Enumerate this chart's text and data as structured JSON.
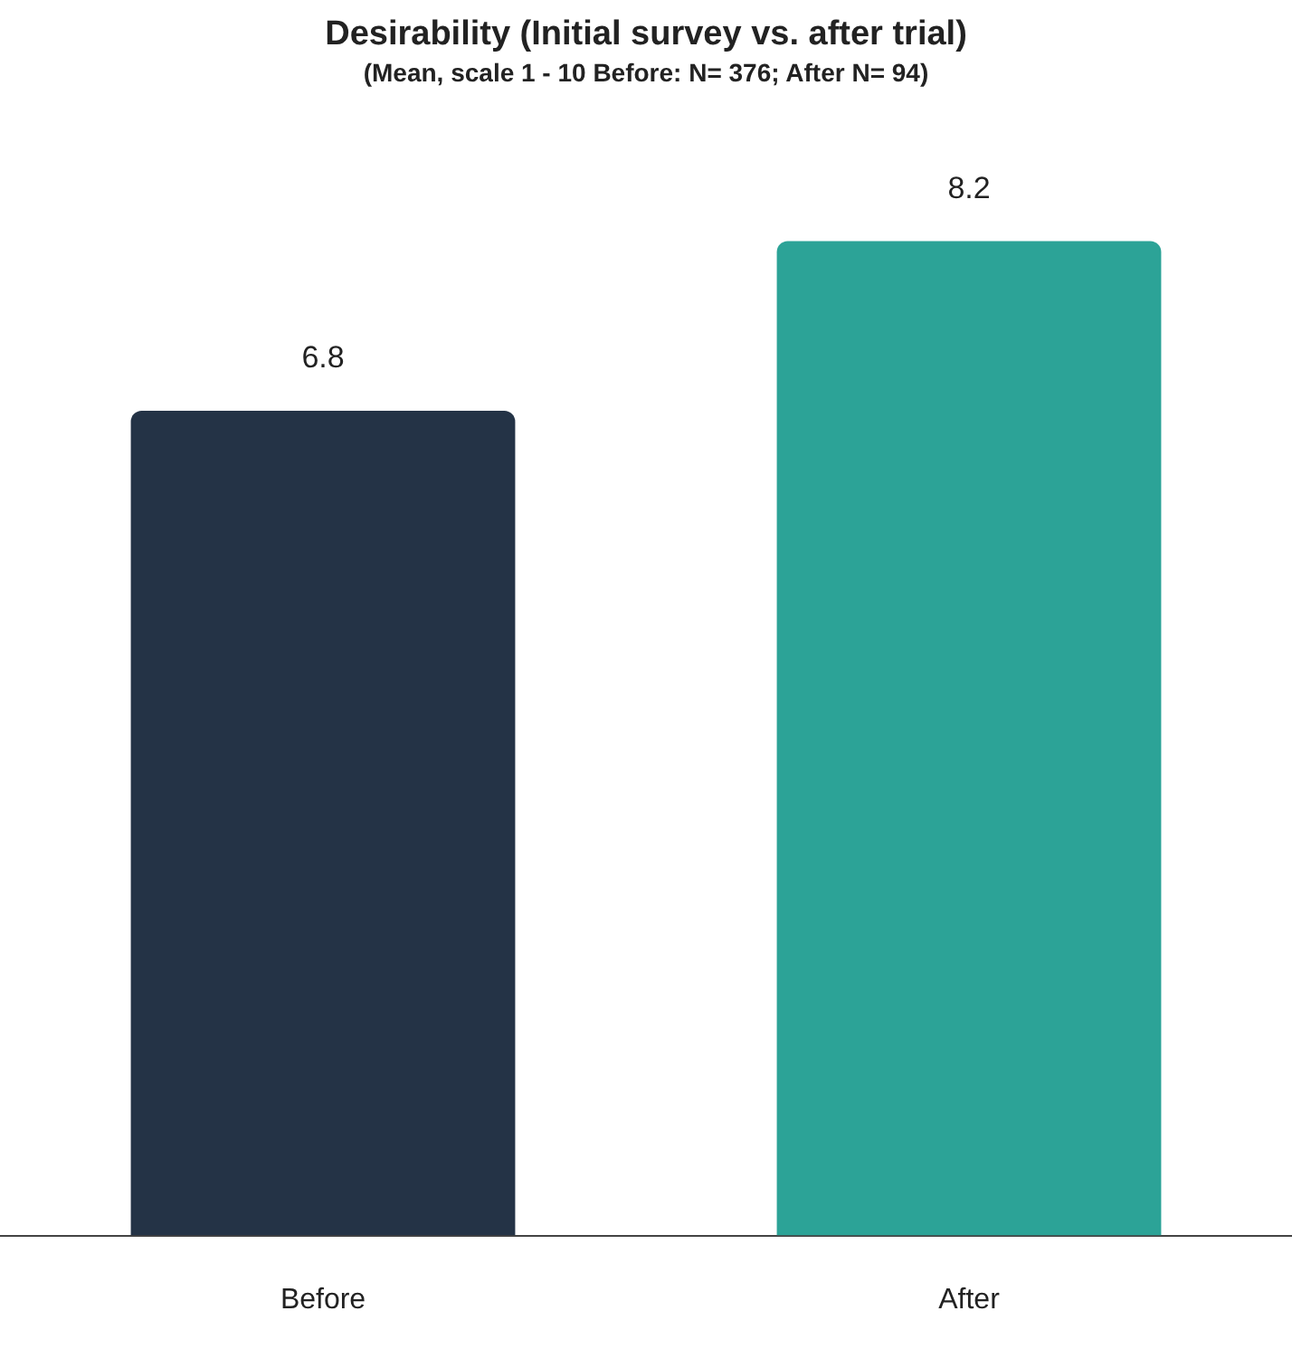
{
  "chart_data": {
    "type": "bar",
    "title": "Desirability (Initial survey vs. after trial)",
    "subtitle": "(Mean, scale 1 - 10 Before: N= 376; After N= 94)",
    "categories": [
      "Before",
      "After"
    ],
    "values": [
      6.8,
      8.2
    ],
    "colors": [
      "#243346",
      "#2ca397"
    ],
    "data_labels": true
  }
}
